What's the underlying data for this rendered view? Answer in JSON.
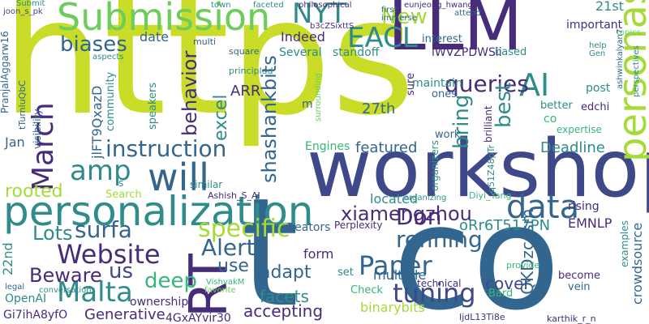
{
  "cloud": {
    "palette": {
      "lime": "#c8dc28",
      "teal": "#2e8c8a",
      "blue": "#32668e",
      "navy": "#3f4888",
      "purple": "#472c7a",
      "green": "#37b679",
      "light_green": "#6ccd5a",
      "yellow_green": "#a5db36"
    },
    "words": [
      {
        "text": "https",
        "color": "lime"
      },
      {
        "text": "co",
        "color": "blue"
      },
      {
        "text": "t",
        "color": "blue"
      },
      {
        "text": "workshop",
        "color": "navy"
      },
      {
        "text": "LLM",
        "color": "purple"
      },
      {
        "text": "personalization",
        "color": "teal"
      },
      {
        "text": "Submission",
        "color": "light_green"
      },
      {
        "text": "RT",
        "color": "purple"
      },
      {
        "text": "personas",
        "color": "yellow_green"
      },
      {
        "text": "will",
        "color": "blue"
      },
      {
        "text": "Paper",
        "color": "blue"
      },
      {
        "text": "data",
        "color": "blue"
      },
      {
        "text": "AI",
        "color": "teal"
      },
      {
        "text": "tuning",
        "color": "navy"
      },
      {
        "text": "Malta",
        "color": "teal"
      },
      {
        "text": "Website",
        "color": "purple"
      },
      {
        "text": "EACL",
        "color": "teal"
      },
      {
        "text": "NYT",
        "color": "teal"
      },
      {
        "text": "biases",
        "color": "blue"
      },
      {
        "text": "queries",
        "color": "purple"
      },
      {
        "text": "instruction",
        "color": "blue"
      },
      {
        "text": "March",
        "color": "purple"
      },
      {
        "text": "amp",
        "color": "teal"
      },
      {
        "text": "specific",
        "color": "yellow_green"
      },
      {
        "text": "refining",
        "color": "blue"
      },
      {
        "text": "xiamengzhou",
        "color": "purple"
      },
      {
        "text": "Alert",
        "color": "blue"
      },
      {
        "text": "surfa",
        "color": "blue"
      },
      {
        "text": "Lots",
        "color": "teal"
      },
      {
        "text": "Beware",
        "color": "purple"
      },
      {
        "text": "us",
        "color": "navy"
      },
      {
        "text": "deep",
        "color": "green"
      },
      {
        "text": "adapt",
        "color": "blue"
      },
      {
        "text": "use",
        "color": "blue"
      },
      {
        "text": "Don",
        "color": "purple"
      },
      {
        "text": "New",
        "color": "yellow_green"
      },
      {
        "text": "bring",
        "color": "teal"
      },
      {
        "text": "best",
        "color": "teal"
      },
      {
        "text": "shashankbits",
        "color": "blue"
      },
      {
        "text": "behavior",
        "color": "purple"
      },
      {
        "text": "excel",
        "color": "teal"
      },
      {
        "text": "rooted",
        "color": "yellow_green"
      },
      {
        "text": "facets",
        "color": "teal"
      },
      {
        "text": "accepting",
        "color": "purple"
      },
      {
        "text": "Generative",
        "color": "purple"
      },
      {
        "text": "Deadline",
        "color": "teal"
      },
      {
        "text": "featured",
        "color": "blue"
      },
      {
        "text": "located",
        "color": "teal"
      },
      {
        "text": "oRr6T517PN",
        "color": "teal"
      },
      {
        "text": "aQKDzcssm",
        "color": "blue"
      },
      {
        "text": "cover",
        "color": "navy"
      },
      {
        "text": "EMNLP",
        "color": "purple"
      },
      {
        "text": "crowdsource",
        "color": "blue"
      },
      {
        "text": "jlFT9QxazD",
        "color": "blue"
      },
      {
        "text": "27th",
        "color": "blue"
      },
      {
        "text": "Indeed",
        "color": "purple"
      },
      {
        "text": "date",
        "color": "blue"
      },
      {
        "text": "21st",
        "color": "teal"
      },
      {
        "text": "22nd",
        "color": "teal"
      },
      {
        "text": "binarybits",
        "color": "yellow_green"
      },
      {
        "text": "multiple",
        "color": "blue"
      },
      {
        "text": "form",
        "color": "purple"
      },
      {
        "text": "Perplexity",
        "color": "purple"
      },
      {
        "text": "creators",
        "color": "blue"
      },
      {
        "text": "ownership",
        "color": "purple"
      },
      {
        "text": "4GxAYvir30",
        "color": "purple"
      },
      {
        "text": "Gi7ihA8yfO",
        "color": "purple"
      },
      {
        "text": "OpenAI",
        "color": "teal"
      },
      {
        "text": "ARR",
        "color": "purple"
      },
      {
        "text": "Jan",
        "color": "blue"
      },
      {
        "text": "Engines",
        "color": "green"
      },
      {
        "text": "Several",
        "color": "teal"
      },
      {
        "text": "standoff",
        "color": "teal"
      },
      {
        "text": "lWVZPDWSii",
        "color": "purple"
      },
      {
        "text": "maintain",
        "color": "teal"
      },
      {
        "text": "ones",
        "color": "blue"
      },
      {
        "text": "interest",
        "color": "blue"
      },
      {
        "text": "based",
        "color": "teal"
      },
      {
        "text": "important",
        "color": "purple"
      },
      {
        "text": "sure",
        "color": "purple"
      },
      {
        "text": "work",
        "color": "blue"
      },
      {
        "text": "brilliant",
        "color": "purple"
      },
      {
        "text": "rising",
        "color": "purple"
      },
      {
        "text": "set",
        "color": "teal"
      },
      {
        "text": "Check",
        "color": "green"
      },
      {
        "text": "Bard",
        "color": "green"
      },
      {
        "text": "technical",
        "color": "purple"
      },
      {
        "text": "become",
        "color": "purple"
      },
      {
        "text": "vein",
        "color": "blue"
      },
      {
        "text": "provide",
        "color": "green"
      },
      {
        "text": "examples",
        "color": "teal"
      },
      {
        "text": "karthik_r_n",
        "color": "purple"
      },
      {
        "text": "IjdL13Ti8e",
        "color": "purple"
      },
      {
        "text": "post",
        "color": "teal"
      },
      {
        "text": "better",
        "color": "teal"
      },
      {
        "text": "edchi",
        "color": "purple"
      },
      {
        "text": "expertise",
        "color": "green"
      },
      {
        "text": "co",
        "color": "green"
      },
      {
        "text": "q51Z48pTr",
        "color": "teal"
      },
      {
        "text": "organizers",
        "color": "teal"
      },
      {
        "text": "organizing",
        "color": "teal"
      },
      {
        "text": "Diyi_Yang",
        "color": "green"
      },
      {
        "text": "Ashish_S_AI",
        "color": "purple"
      },
      {
        "text": "Search",
        "color": "yellow_green"
      },
      {
        "text": "similar",
        "color": "teal"
      },
      {
        "text": "speakers",
        "color": "teal"
      },
      {
        "text": "community",
        "color": "teal"
      },
      {
        "text": "principled",
        "color": "teal"
      },
      {
        "text": "square",
        "color": "blue"
      },
      {
        "text": "multi",
        "color": "blue"
      },
      {
        "text": "aspects",
        "color": "teal"
      },
      {
        "text": "visibility",
        "color": "blue"
      },
      {
        "text": "tTurnluQbC",
        "color": "blue"
      },
      {
        "text": "PranjalAggarw16",
        "color": "blue"
      },
      {
        "text": "joon_s_pk",
        "color": "navy"
      },
      {
        "text": "Submit",
        "color": "teal"
      },
      {
        "text": "legal",
        "color": "blue"
      },
      {
        "text": "conversations",
        "color": "teal"
      },
      {
        "text": "VishvakM",
        "color": "green"
      },
      {
        "text": "favorite",
        "color": "light_green"
      },
      {
        "text": "m",
        "color": "blue"
      },
      {
        "text": "s",
        "color": "teal"
      },
      {
        "text": "surrounding",
        "color": "light_green"
      },
      {
        "text": "town",
        "color": "teal"
      },
      {
        "text": "faceted",
        "color": "teal"
      },
      {
        "text": "philosophical",
        "color": "purple"
      },
      {
        "text": "eunjeong_hwang",
        "color": "purple"
      },
      {
        "text": "attend",
        "color": "blue"
      },
      {
        "text": "first",
        "color": "blue"
      },
      {
        "text": "immerse",
        "color": "blue"
      },
      {
        "text": "b3cZSixttS",
        "color": "purple"
      },
      {
        "text": "topics",
        "color": "light_green"
      },
      {
        "text": "help",
        "color": "teal"
      },
      {
        "text": "Gen",
        "color": "teal"
      },
      {
        "text": "ashwinkalyan7",
        "color": "blue"
      },
      {
        "text": "perspectives",
        "color": "teal"
      }
    ]
  }
}
